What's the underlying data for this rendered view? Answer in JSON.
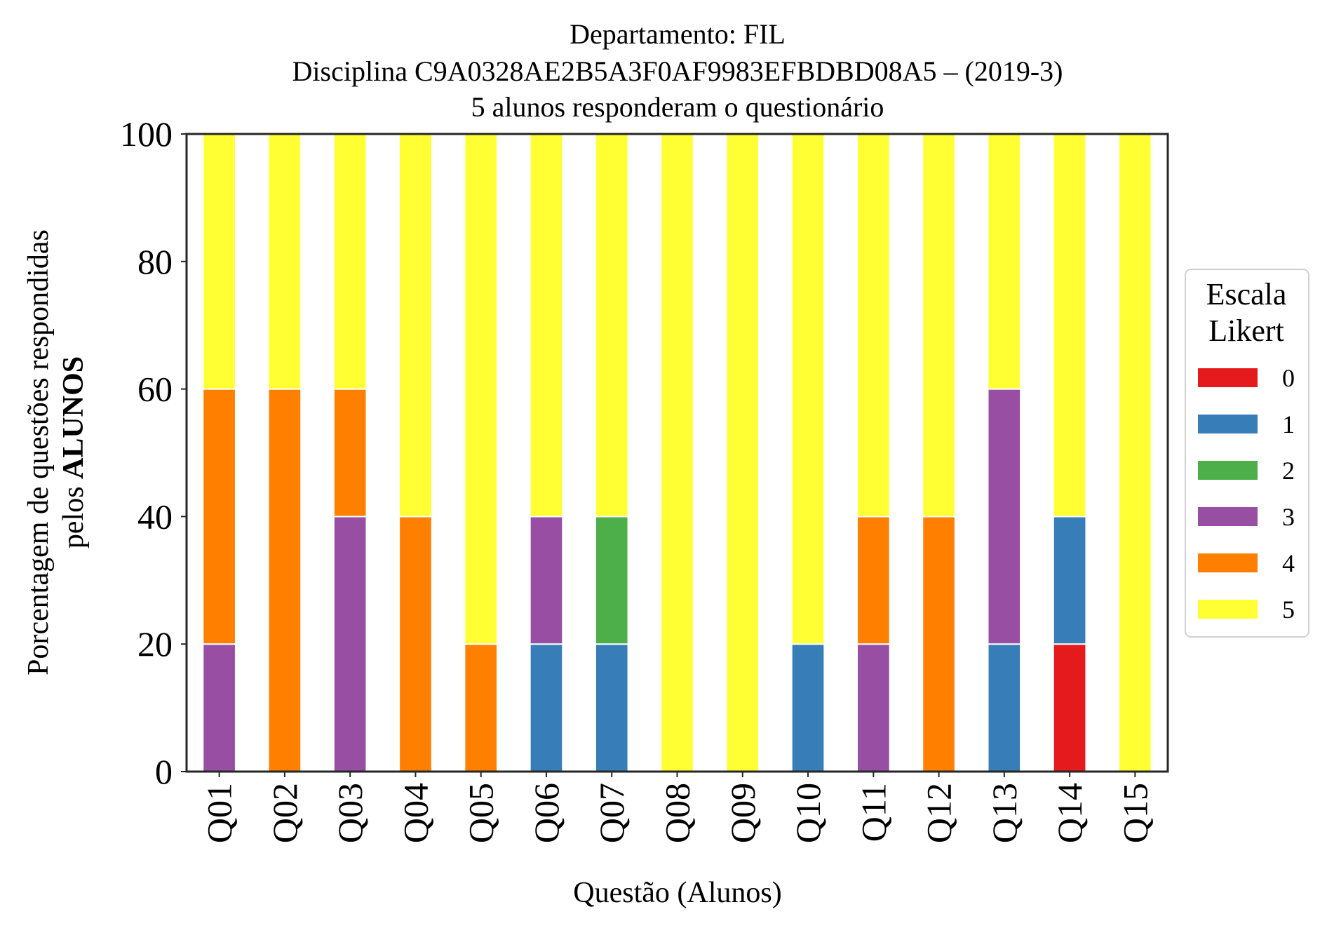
{
  "chart_data": {
    "type": "bar",
    "stacked": true,
    "title_lines": [
      "Departamento: FIL",
      "Disciplina C9A0328AE2B5A3F0AF9983EFBDBD08A5 – (2019-3)",
      "5 alunos responderam o questionário"
    ],
    "xlabel": "Questão (Alunos)",
    "ylabel_line1": "Porcentagem de questões respondidas",
    "ylabel_line2_prefix": "pelos ",
    "ylabel_line2_bold": "ALUNOS",
    "ylim": [
      0,
      100
    ],
    "yticks": [
      "0",
      "20",
      "40",
      "60",
      "80",
      "100"
    ],
    "grid": false,
    "legend_title_lines": [
      "Escala",
      "Likert"
    ],
    "legend_position": "center-right, outside plot",
    "categories": [
      "Q01",
      "Q02",
      "Q03",
      "Q04",
      "Q05",
      "Q06",
      "Q07",
      "Q08",
      "Q09",
      "Q10",
      "Q11",
      "Q12",
      "Q13",
      "Q14",
      "Q15"
    ],
    "series": [
      {
        "name": "0",
        "color": "#e41a1c",
        "values": [
          0,
          0,
          0,
          0,
          0,
          0,
          0,
          0,
          0,
          0,
          0,
          0,
          0,
          20,
          0
        ]
      },
      {
        "name": "1",
        "color": "#377eb8",
        "values": [
          0,
          0,
          0,
          0,
          0,
          20,
          20,
          0,
          0,
          20,
          0,
          0,
          20,
          20,
          0
        ]
      },
      {
        "name": "2",
        "color": "#4daf4a",
        "values": [
          0,
          0,
          0,
          0,
          0,
          0,
          20,
          0,
          0,
          0,
          0,
          0,
          0,
          0,
          0
        ]
      },
      {
        "name": "3",
        "color": "#984ea3",
        "values": [
          20,
          0,
          40,
          0,
          0,
          20,
          0,
          0,
          0,
          0,
          20,
          0,
          40,
          0,
          0
        ]
      },
      {
        "name": "4",
        "color": "#ff7f00",
        "values": [
          40,
          60,
          20,
          40,
          20,
          0,
          0,
          0,
          0,
          0,
          20,
          40,
          0,
          0,
          0
        ]
      },
      {
        "name": "5",
        "color": "#ffff33",
        "values": [
          40,
          40,
          40,
          60,
          80,
          60,
          60,
          100,
          100,
          80,
          60,
          60,
          40,
          60,
          100
        ]
      }
    ]
  }
}
